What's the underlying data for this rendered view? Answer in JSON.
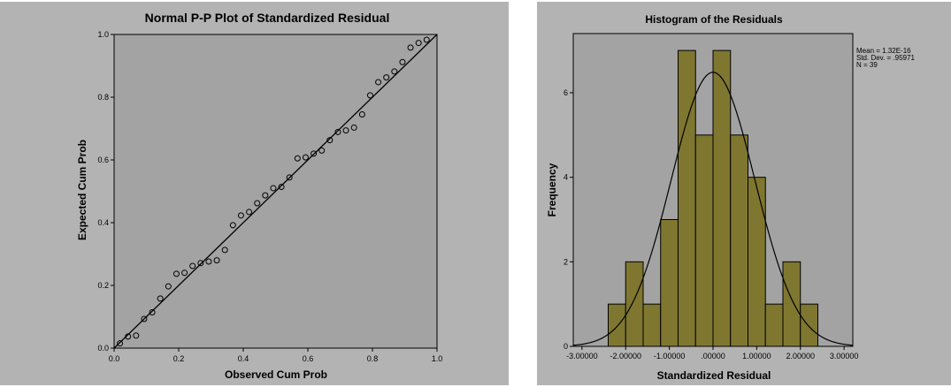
{
  "chart_data": [
    {
      "type": "scatter",
      "title": "Normal P-P Plot of Standardized Residual",
      "xlabel": "Observed Cum Prob",
      "ylabel": "Expected Cum Prob",
      "xlim": [
        0,
        1
      ],
      "ylim": [
        0,
        1
      ],
      "x_ticks": [
        "0.0",
        "0.2",
        "0.4",
        "0.6",
        "0.8",
        "1.0"
      ],
      "y_ticks": [
        "0.0",
        "0.2",
        "0.4",
        "0.6",
        "0.8",
        "1.0"
      ],
      "reference_line": [
        [
          0,
          0
        ],
        [
          1,
          1
        ]
      ],
      "points": [
        [
          0.018,
          0.015
        ],
        [
          0.043,
          0.037
        ],
        [
          0.068,
          0.04
        ],
        [
          0.093,
          0.093
        ],
        [
          0.118,
          0.114
        ],
        [
          0.143,
          0.158
        ],
        [
          0.168,
          0.197
        ],
        [
          0.193,
          0.237
        ],
        [
          0.218,
          0.24
        ],
        [
          0.243,
          0.262
        ],
        [
          0.268,
          0.271
        ],
        [
          0.293,
          0.276
        ],
        [
          0.318,
          0.28
        ],
        [
          0.343,
          0.313
        ],
        [
          0.368,
          0.392
        ],
        [
          0.393,
          0.423
        ],
        [
          0.418,
          0.434
        ],
        [
          0.443,
          0.462
        ],
        [
          0.468,
          0.487
        ],
        [
          0.493,
          0.51
        ],
        [
          0.518,
          0.514
        ],
        [
          0.543,
          0.544
        ],
        [
          0.568,
          0.605
        ],
        [
          0.593,
          0.608
        ],
        [
          0.618,
          0.62
        ],
        [
          0.643,
          0.63
        ],
        [
          0.668,
          0.663
        ],
        [
          0.693,
          0.689
        ],
        [
          0.718,
          0.694
        ],
        [
          0.743,
          0.703
        ],
        [
          0.768,
          0.745
        ],
        [
          0.793,
          0.806
        ],
        [
          0.818,
          0.848
        ],
        [
          0.843,
          0.863
        ],
        [
          0.868,
          0.882
        ],
        [
          0.893,
          0.912
        ],
        [
          0.918,
          0.958
        ],
        [
          0.943,
          0.973
        ],
        [
          0.968,
          0.983
        ]
      ],
      "colors": {
        "panel_bg": "#b3b3b3",
        "plot_bg": "#a3a3a3",
        "ink": "#000000"
      }
    },
    {
      "type": "bar",
      "title": "Histogram of the Residuals",
      "xlabel": "Standardized Residual",
      "ylabel": "Frequency",
      "xlim": [
        -3.2,
        3.2
      ],
      "ylim": [
        0,
        7.4
      ],
      "x_ticks": [
        "-3.00000",
        "-2.00000",
        "-1.00000",
        ".00000",
        "1.00000",
        "2.00000",
        "3.00000"
      ],
      "y_ticks": [
        "0",
        "2",
        "4",
        "6"
      ],
      "bin_width": 0.4,
      "bins": [
        {
          "start": -2.4,
          "value": 1
        },
        {
          "start": -2.0,
          "value": 2
        },
        {
          "start": -1.6,
          "value": 1
        },
        {
          "start": -1.2,
          "value": 3
        },
        {
          "start": -0.8,
          "value": 7
        },
        {
          "start": -0.4,
          "value": 5
        },
        {
          "start": 0.0,
          "value": 7
        },
        {
          "start": 0.4,
          "value": 5
        },
        {
          "start": 0.8,
          "value": 4
        },
        {
          "start": 1.2,
          "value": 1
        },
        {
          "start": 1.6,
          "value": 2
        },
        {
          "start": 2.0,
          "value": 1
        }
      ],
      "normal_curve": {
        "mean": 0,
        "sd": 0.95971,
        "n": 39
      },
      "stats_lines": [
        "Mean = 1.32E-16",
        "Std. Dev. = .95971",
        "N = 39"
      ],
      "colors": {
        "panel_bg": "#b3b3b3",
        "plot_bg": "#a3a3a3",
        "bar_fill": "#7f7730",
        "bar_stroke": "#000000"
      }
    }
  ]
}
